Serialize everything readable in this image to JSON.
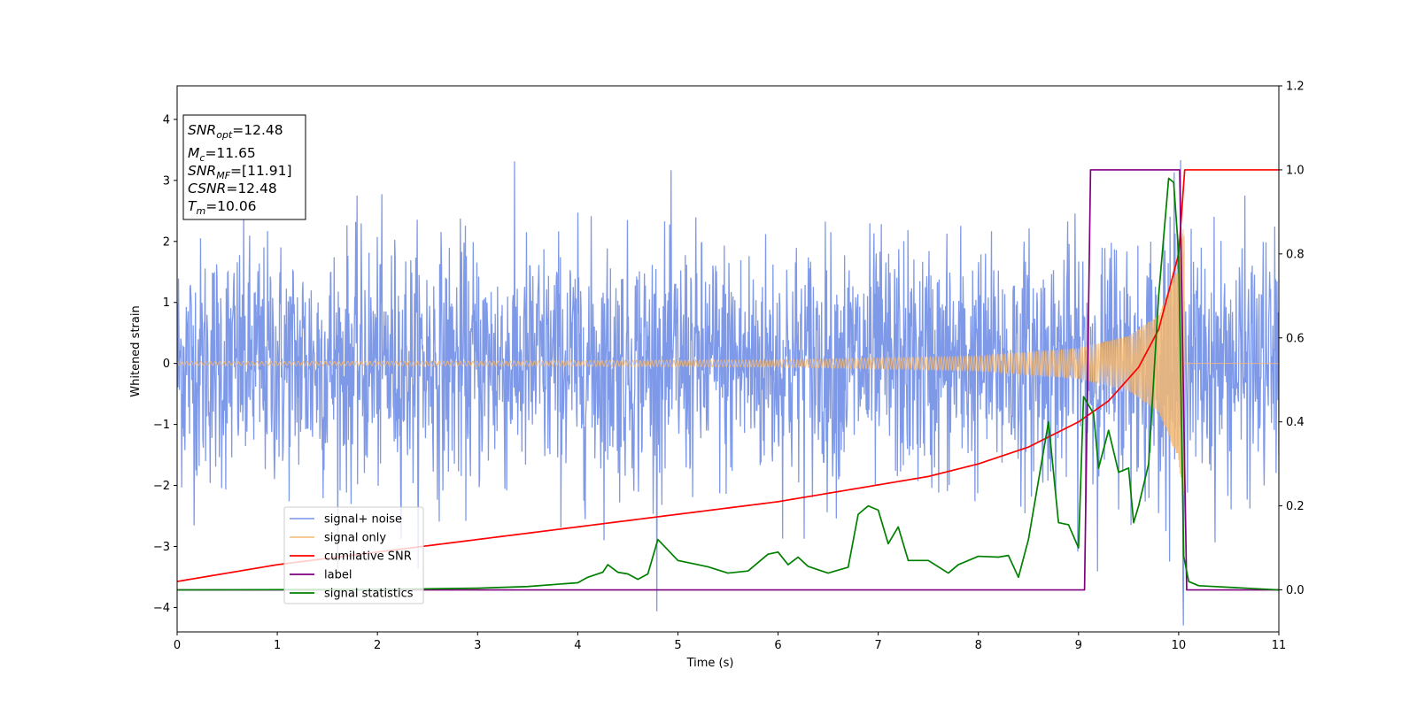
{
  "chart_data": {
    "type": "line",
    "title": "",
    "xlabel": "Time (s)",
    "ylabel": "Whitened strain",
    "y2label": "",
    "xlim": [
      0,
      11
    ],
    "ylim": [
      -4.4,
      4.55
    ],
    "y2lim": [
      -0.1,
      1.2
    ],
    "x_ticks": [
      0,
      1,
      2,
      3,
      4,
      5,
      6,
      7,
      8,
      9,
      10,
      11
    ],
    "y_ticks": [
      -4,
      -3,
      -2,
      -1,
      0,
      1,
      2,
      3,
      4
    ],
    "y2_ticks": [
      0.0,
      0.2,
      0.4,
      0.6,
      0.8,
      1.0,
      1.2
    ],
    "grid": false,
    "legend_position": "lower-left",
    "annotation": {
      "snr_opt": {
        "label": "SNR",
        "sub": "opt",
        "value": "=12.48"
      },
      "mc": {
        "label": "M",
        "sub": "c",
        "value": "=11.65"
      },
      "snr_mf": {
        "label": "SNR",
        "sub": "MF",
        "value": "=[11.91]"
      },
      "csnr": {
        "label": "CSNR",
        "value": "=12.48"
      },
      "tm": {
        "label": "T",
        "sub": "m",
        "value": "=10.06"
      }
    },
    "series": [
      {
        "name": "signal+ noise",
        "color": "#7893e8",
        "axis": "left",
        "description_values": {
          "noise_sigma": 1.0,
          "x_range": [
            0,
            11
          ]
        }
      },
      {
        "name": "signal only",
        "color": "#f5b971",
        "axis": "left",
        "envelope": {
          "x": [
            0,
            3,
            6,
            8,
            9,
            9.5,
            9.8,
            10.0,
            10.05
          ],
          "amplitude": [
            0.03,
            0.04,
            0.06,
            0.12,
            0.25,
            0.45,
            0.8,
            1.6,
            2.3
          ]
        },
        "end_time": 10.06
      },
      {
        "name": "cumilative SNR",
        "color": "#ff0000",
        "axis": "right",
        "x": [
          0,
          1,
          2,
          3,
          4,
          5,
          6,
          7,
          7.5,
          8,
          8.5,
          9,
          9.3,
          9.6,
          9.8,
          10.0,
          10.06,
          11
        ],
        "y": [
          0.02,
          0.06,
          0.09,
          0.12,
          0.15,
          0.18,
          0.21,
          0.25,
          0.27,
          0.3,
          0.34,
          0.4,
          0.45,
          0.53,
          0.62,
          0.8,
          1.0,
          1.0
        ]
      },
      {
        "name": "label",
        "color": "#800080",
        "axis": "right",
        "x": [
          0,
          9.06,
          9.12,
          10.01,
          10.08,
          11
        ],
        "y": [
          0,
          0,
          1,
          1,
          0,
          0
        ]
      },
      {
        "name": "signal statistics",
        "color": "#008000",
        "axis": "right",
        "x": [
          0,
          2,
          3,
          3.5,
          4,
          4.1,
          4.25,
          4.3,
          4.4,
          4.5,
          4.6,
          4.7,
          4.8,
          4.9,
          5.0,
          5.1,
          5.3,
          5.5,
          5.7,
          5.8,
          5.9,
          6.0,
          6.1,
          6.2,
          6.3,
          6.4,
          6.5,
          6.7,
          6.8,
          6.9,
          7.0,
          7.1,
          7.2,
          7.3,
          7.5,
          7.7,
          7.8,
          8.0,
          8.2,
          8.3,
          8.4,
          8.5,
          8.6,
          8.7,
          8.75,
          8.8,
          8.9,
          9.0,
          9.05,
          9.1,
          9.15,
          9.2,
          9.3,
          9.4,
          9.5,
          9.55,
          9.6,
          9.7,
          9.8,
          9.9,
          9.95,
          10.0,
          10.05,
          10.1,
          10.2,
          11
        ],
        "y": [
          0,
          0.001,
          0.004,
          0.008,
          0.017,
          0.03,
          0.042,
          0.06,
          0.042,
          0.038,
          0.025,
          0.038,
          0.12,
          0.095,
          0.07,
          0.065,
          0.055,
          0.04,
          0.045,
          0.065,
          0.085,
          0.09,
          0.06,
          0.078,
          0.056,
          0.048,
          0.04,
          0.054,
          0.18,
          0.2,
          0.19,
          0.11,
          0.15,
          0.07,
          0.07,
          0.04,
          0.06,
          0.08,
          0.078,
          0.082,
          0.03,
          0.12,
          0.26,
          0.4,
          0.28,
          0.16,
          0.155,
          0.1,
          0.46,
          0.44,
          0.42,
          0.29,
          0.38,
          0.28,
          0.29,
          0.16,
          0.2,
          0.3,
          0.7,
          0.98,
          0.97,
          0.8,
          0.08,
          0.02,
          0.01,
          0.0
        ]
      }
    ]
  }
}
